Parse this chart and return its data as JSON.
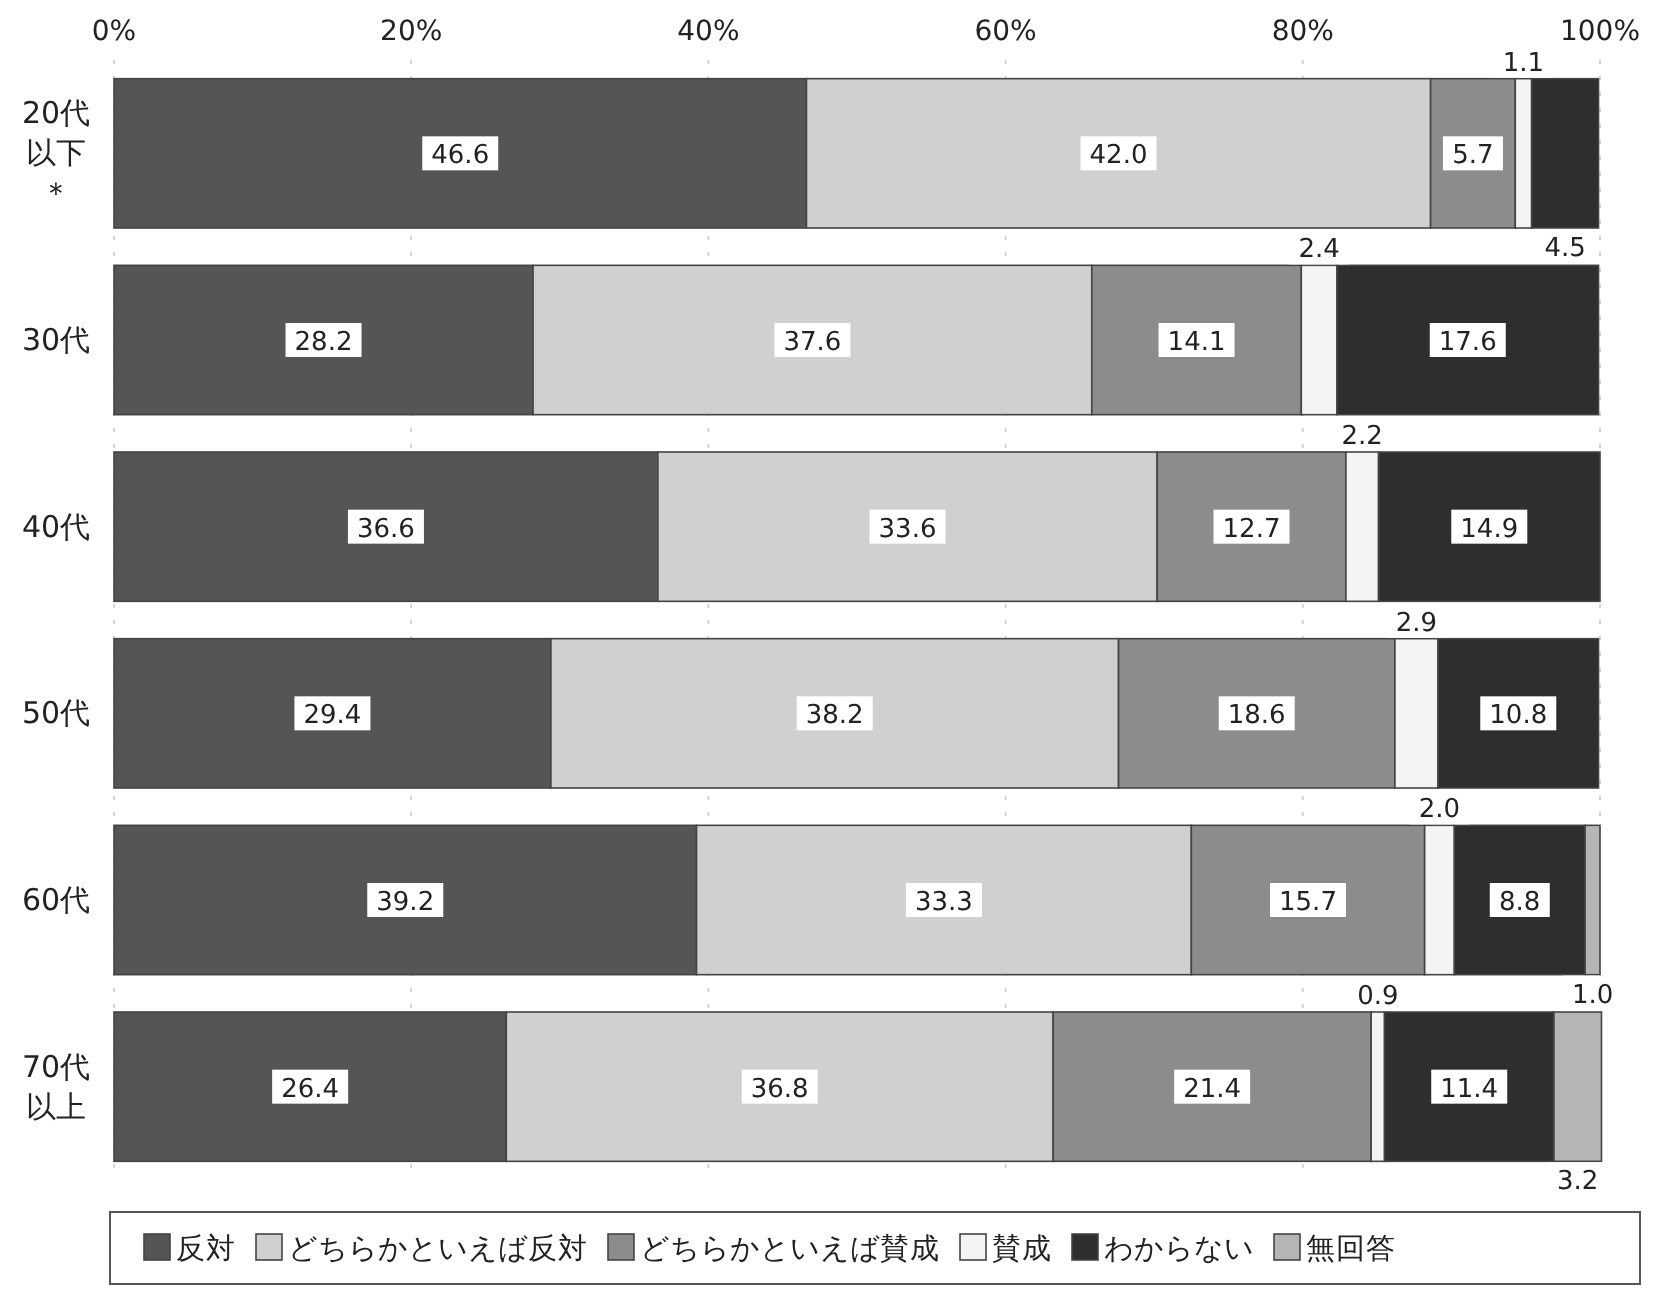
{
  "chart_data": {
    "type": "bar",
    "orientation": "horizontal",
    "stacked": true,
    "categories": [
      "20代以下＊",
      "30代",
      "40代",
      "50代",
      "60代",
      "70代以上"
    ],
    "xlim": [
      0,
      100
    ],
    "xticks": [
      {
        "value": 0,
        "label": "0%"
      },
      {
        "value": 20,
        "label": "20%"
      },
      {
        "value": 40,
        "label": "40%"
      },
      {
        "value": 60,
        "label": "60%"
      },
      {
        "value": 80,
        "label": "80%"
      },
      {
        "value": 100,
        "label": "100%"
      }
    ],
    "grid": "x",
    "legend": "bottom",
    "series": [
      {
        "name": "反対",
        "color": "#555555",
        "values": [
          46.6,
          28.2,
          36.6,
          29.4,
          39.2,
          26.4
        ],
        "value_labels": [
          "46.6",
          "28.2",
          "36.6",
          "29.4",
          "39.2",
          "26.4"
        ]
      },
      {
        "name": "どちらかといえば反対",
        "color": "#d0d0d0",
        "values": [
          42.0,
          37.6,
          33.6,
          38.2,
          33.3,
          36.8
        ],
        "value_labels": [
          "42.0",
          "37.6",
          "33.6",
          "38.2",
          "33.3",
          "36.8"
        ]
      },
      {
        "name": "どちらかといえば賛成",
        "color": "#8c8c8c",
        "values": [
          5.7,
          14.1,
          12.7,
          18.6,
          15.7,
          21.4
        ],
        "value_labels": [
          "5.7",
          "14.1",
          "12.7",
          "18.6",
          "15.7",
          "21.4"
        ]
      },
      {
        "name": "賛成",
        "color": "#f4f4f4",
        "values": [
          1.1,
          2.4,
          2.2,
          2.9,
          2.0,
          0.9
        ],
        "value_labels": [
          "1.1",
          "2.4",
          "2.2",
          "2.9",
          "2.0",
          "0.9"
        ]
      },
      {
        "name": "わからない",
        "color": "#2e2e2e",
        "values": [
          4.5,
          17.6,
          14.9,
          10.8,
          8.8,
          11.4
        ],
        "value_labels": [
          "4.5",
          "17.6",
          "14.9",
          "10.8",
          "8.8",
          "11.4"
        ]
      },
      {
        "name": "無回答",
        "color": "#b5b5b5",
        "values": [
          null,
          null,
          null,
          null,
          1.0,
          3.2
        ],
        "value_labels": [
          null,
          null,
          null,
          null,
          "1.0",
          "3.2"
        ]
      }
    ]
  }
}
